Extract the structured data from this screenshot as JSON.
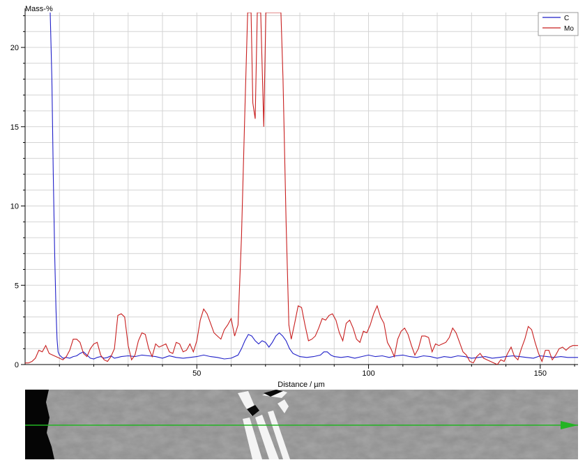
{
  "chart_data": {
    "type": "line",
    "title": "",
    "xlabel": "Distance / µm",
    "ylabel": "Mass-%",
    "xlim": [
      0,
      161
    ],
    "ylim": [
      0,
      22.2
    ],
    "x_ticks": [
      50,
      100,
      150
    ],
    "x_tick_labels": [
      "50",
      "100",
      "150"
    ],
    "y_ticks": [
      0,
      5,
      10,
      15,
      20
    ],
    "y_tick_labels": [
      "0",
      "5",
      "10",
      "15",
      "20"
    ],
    "grid": true,
    "legend_position": "top-right",
    "series": [
      {
        "name": "C",
        "color": "#1f1fc8",
        "points": [
          [
            7.3,
            22.2
          ],
          [
            7.8,
            18.0
          ],
          [
            8.2,
            12.0
          ],
          [
            8.6,
            7.0
          ],
          [
            9.0,
            3.5
          ],
          [
            9.3,
            1.6
          ],
          [
            9.6,
            0.8
          ],
          [
            10,
            0.6
          ],
          [
            11,
            0.4
          ],
          [
            12,
            0.45
          ],
          [
            13,
            0.4
          ],
          [
            14,
            0.5
          ],
          [
            15,
            0.55
          ],
          [
            16,
            0.7
          ],
          [
            17,
            0.8
          ],
          [
            18,
            0.6
          ],
          [
            19,
            0.4
          ],
          [
            20,
            0.35
          ],
          [
            21,
            0.45
          ],
          [
            22,
            0.5
          ],
          [
            23,
            0.4
          ],
          [
            24,
            0.45
          ],
          [
            25,
            0.55
          ],
          [
            26,
            0.4
          ],
          [
            27,
            0.45
          ],
          [
            28,
            0.5
          ],
          [
            30,
            0.55
          ],
          [
            32,
            0.5
          ],
          [
            34,
            0.6
          ],
          [
            36,
            0.55
          ],
          [
            38,
            0.5
          ],
          [
            40,
            0.4
          ],
          [
            42,
            0.55
          ],
          [
            44,
            0.45
          ],
          [
            46,
            0.4
          ],
          [
            48,
            0.45
          ],
          [
            50,
            0.5
          ],
          [
            52,
            0.6
          ],
          [
            54,
            0.5
          ],
          [
            56,
            0.45
          ],
          [
            58,
            0.35
          ],
          [
            60,
            0.4
          ],
          [
            62,
            0.6
          ],
          [
            63,
            1.0
          ],
          [
            64,
            1.5
          ],
          [
            65,
            1.9
          ],
          [
            66,
            1.8
          ],
          [
            67,
            1.5
          ],
          [
            68,
            1.3
          ],
          [
            69,
            1.5
          ],
          [
            70,
            1.4
          ],
          [
            71,
            1.1
          ],
          [
            72,
            1.4
          ],
          [
            73,
            1.8
          ],
          [
            74,
            2.0
          ],
          [
            75,
            1.8
          ],
          [
            76,
            1.5
          ],
          [
            77,
            1.0
          ],
          [
            78,
            0.7
          ],
          [
            80,
            0.5
          ],
          [
            82,
            0.45
          ],
          [
            84,
            0.5
          ],
          [
            86,
            0.6
          ],
          [
            87,
            0.8
          ],
          [
            88,
            0.8
          ],
          [
            89,
            0.6
          ],
          [
            90,
            0.5
          ],
          [
            92,
            0.45
          ],
          [
            94,
            0.5
          ],
          [
            96,
            0.4
          ],
          [
            98,
            0.5
          ],
          [
            100,
            0.6
          ],
          [
            102,
            0.5
          ],
          [
            104,
            0.55
          ],
          [
            106,
            0.45
          ],
          [
            108,
            0.55
          ],
          [
            110,
            0.6
          ],
          [
            112,
            0.5
          ],
          [
            114,
            0.45
          ],
          [
            116,
            0.55
          ],
          [
            118,
            0.5
          ],
          [
            120,
            0.4
          ],
          [
            122,
            0.5
          ],
          [
            124,
            0.45
          ],
          [
            126,
            0.55
          ],
          [
            128,
            0.5
          ],
          [
            130,
            0.4
          ],
          [
            132,
            0.45
          ],
          [
            134,
            0.5
          ],
          [
            136,
            0.4
          ],
          [
            138,
            0.45
          ],
          [
            140,
            0.5
          ],
          [
            142,
            0.55
          ],
          [
            144,
            0.5
          ],
          [
            146,
            0.45
          ],
          [
            148,
            0.4
          ],
          [
            150,
            0.55
          ],
          [
            152,
            0.5
          ],
          [
            154,
            0.45
          ],
          [
            156,
            0.5
          ],
          [
            158,
            0.45
          ],
          [
            161,
            0.45
          ]
        ]
      },
      {
        "name": "Mo",
        "color": "#c81e1e",
        "points": [
          [
            0,
            0.1
          ],
          [
            1,
            0.1
          ],
          [
            2,
            0.2
          ],
          [
            3,
            0.4
          ],
          [
            4,
            0.9
          ],
          [
            5,
            0.8
          ],
          [
            6,
            1.2
          ],
          [
            7,
            0.7
          ],
          [
            8,
            0.6
          ],
          [
            9,
            0.5
          ],
          [
            10,
            0.4
          ],
          [
            11,
            0.3
          ],
          [
            12,
            0.5
          ],
          [
            13,
            0.9
          ],
          [
            14,
            1.6
          ],
          [
            15,
            1.6
          ],
          [
            16,
            1.4
          ],
          [
            17,
            0.7
          ],
          [
            18,
            0.5
          ],
          [
            19,
            1.0
          ],
          [
            20,
            1.3
          ],
          [
            21,
            1.4
          ],
          [
            22,
            0.6
          ],
          [
            23,
            0.3
          ],
          [
            24,
            0.2
          ],
          [
            25,
            0.5
          ],
          [
            26,
            1.0
          ],
          [
            27,
            3.1
          ],
          [
            28,
            3.2
          ],
          [
            29,
            3.0
          ],
          [
            30,
            1.2
          ],
          [
            31,
            0.3
          ],
          [
            32,
            0.6
          ],
          [
            33,
            1.5
          ],
          [
            34,
            2.0
          ],
          [
            35,
            1.9
          ],
          [
            36,
            1.0
          ],
          [
            37,
            0.5
          ],
          [
            38,
            1.3
          ],
          [
            39,
            1.1
          ],
          [
            40,
            1.2
          ],
          [
            41,
            1.3
          ],
          [
            42,
            0.8
          ],
          [
            43,
            0.7
          ],
          [
            44,
            1.4
          ],
          [
            45,
            1.3
          ],
          [
            46,
            0.8
          ],
          [
            47,
            0.9
          ],
          [
            48,
            1.3
          ],
          [
            49,
            0.8
          ],
          [
            50,
            1.5
          ],
          [
            51,
            2.8
          ],
          [
            52,
            3.5
          ],
          [
            53,
            3.2
          ],
          [
            54,
            2.6
          ],
          [
            55,
            2.0
          ],
          [
            56,
            1.8
          ],
          [
            57,
            1.6
          ],
          [
            58,
            2.2
          ],
          [
            59,
            2.5
          ],
          [
            60,
            2.9
          ],
          [
            61,
            1.8
          ],
          [
            62,
            2.5
          ],
          [
            63,
            8.0
          ],
          [
            64,
            16.0
          ],
          [
            64.8,
            22.2
          ],
          [
            65.8,
            22.2
          ],
          [
            66.3,
            16.5
          ],
          [
            67,
            15.5
          ],
          [
            67.6,
            22.2
          ],
          [
            68.6,
            22.2
          ],
          [
            69.5,
            15.0
          ],
          [
            70.1,
            22.2
          ],
          [
            71.5,
            22.2
          ],
          [
            72.5,
            22.2
          ],
          [
            73.5,
            22.2
          ],
          [
            74.5,
            22.2
          ],
          [
            75.1,
            18.0
          ],
          [
            76,
            9.0
          ],
          [
            76.8,
            2.5
          ],
          [
            77.5,
            1.6
          ],
          [
            78.5,
            2.6
          ],
          [
            79.5,
            3.7
          ],
          [
            80.5,
            3.6
          ],
          [
            81.5,
            2.5
          ],
          [
            82.5,
            1.5
          ],
          [
            83.5,
            1.6
          ],
          [
            84.5,
            1.8
          ],
          [
            85.5,
            2.3
          ],
          [
            86.5,
            2.9
          ],
          [
            87.5,
            2.8
          ],
          [
            88.5,
            3.1
          ],
          [
            89.5,
            3.2
          ],
          [
            90.5,
            2.8
          ],
          [
            91.5,
            2.0
          ],
          [
            92.5,
            1.5
          ],
          [
            93.5,
            2.6
          ],
          [
            94.5,
            2.8
          ],
          [
            95.5,
            2.3
          ],
          [
            96.5,
            1.6
          ],
          [
            97.5,
            1.4
          ],
          [
            98.5,
            2.1
          ],
          [
            99.5,
            2.0
          ],
          [
            100.5,
            2.5
          ],
          [
            101.5,
            3.2
          ],
          [
            102.5,
            3.7
          ],
          [
            103.5,
            3.0
          ],
          [
            104.5,
            2.6
          ],
          [
            105.5,
            1.4
          ],
          [
            106.5,
            1.0
          ],
          [
            107.5,
            0.5
          ],
          [
            108.5,
            1.6
          ],
          [
            109.5,
            2.1
          ],
          [
            110.5,
            2.3
          ],
          [
            111.5,
            1.9
          ],
          [
            112.5,
            1.2
          ],
          [
            113.5,
            0.6
          ],
          [
            114.5,
            1.0
          ],
          [
            115.5,
            1.8
          ],
          [
            116.5,
            1.8
          ],
          [
            117.5,
            1.7
          ],
          [
            118.5,
            0.8
          ],
          [
            119.5,
            1.3
          ],
          [
            120.5,
            1.2
          ],
          [
            121.5,
            1.3
          ],
          [
            122.5,
            1.4
          ],
          [
            123.5,
            1.7
          ],
          [
            124.5,
            2.3
          ],
          [
            125.5,
            2.0
          ],
          [
            126.5,
            1.4
          ],
          [
            127.5,
            0.8
          ],
          [
            128.5,
            0.6
          ],
          [
            129.5,
            0.2
          ],
          [
            130.5,
            0.1
          ],
          [
            131.5,
            0.5
          ],
          [
            132.5,
            0.7
          ],
          [
            133.5,
            0.4
          ],
          [
            134.5,
            0.3
          ],
          [
            135.5,
            0.2
          ],
          [
            136.5,
            0.1
          ],
          [
            137.5,
            0.0
          ],
          [
            138.5,
            0.3
          ],
          [
            139.5,
            0.2
          ],
          [
            140.5,
            0.7
          ],
          [
            141.5,
            1.1
          ],
          [
            142.5,
            0.5
          ],
          [
            143.5,
            0.3
          ],
          [
            144.5,
            1.0
          ],
          [
            145.5,
            1.6
          ],
          [
            146.5,
            2.4
          ],
          [
            147.5,
            2.2
          ],
          [
            148.5,
            1.4
          ],
          [
            149.5,
            0.7
          ],
          [
            150.5,
            0.2
          ],
          [
            151.5,
            0.9
          ],
          [
            152.5,
            0.9
          ],
          [
            153.5,
            0.3
          ],
          [
            154.5,
            0.6
          ],
          [
            155.5,
            1.0
          ],
          [
            156.5,
            1.1
          ],
          [
            157.5,
            0.9
          ],
          [
            158.5,
            1.1
          ],
          [
            159.5,
            1.2
          ],
          [
            161,
            1.2
          ]
        ]
      }
    ]
  },
  "micrograph": {
    "scan_line_color": "#23b423"
  }
}
